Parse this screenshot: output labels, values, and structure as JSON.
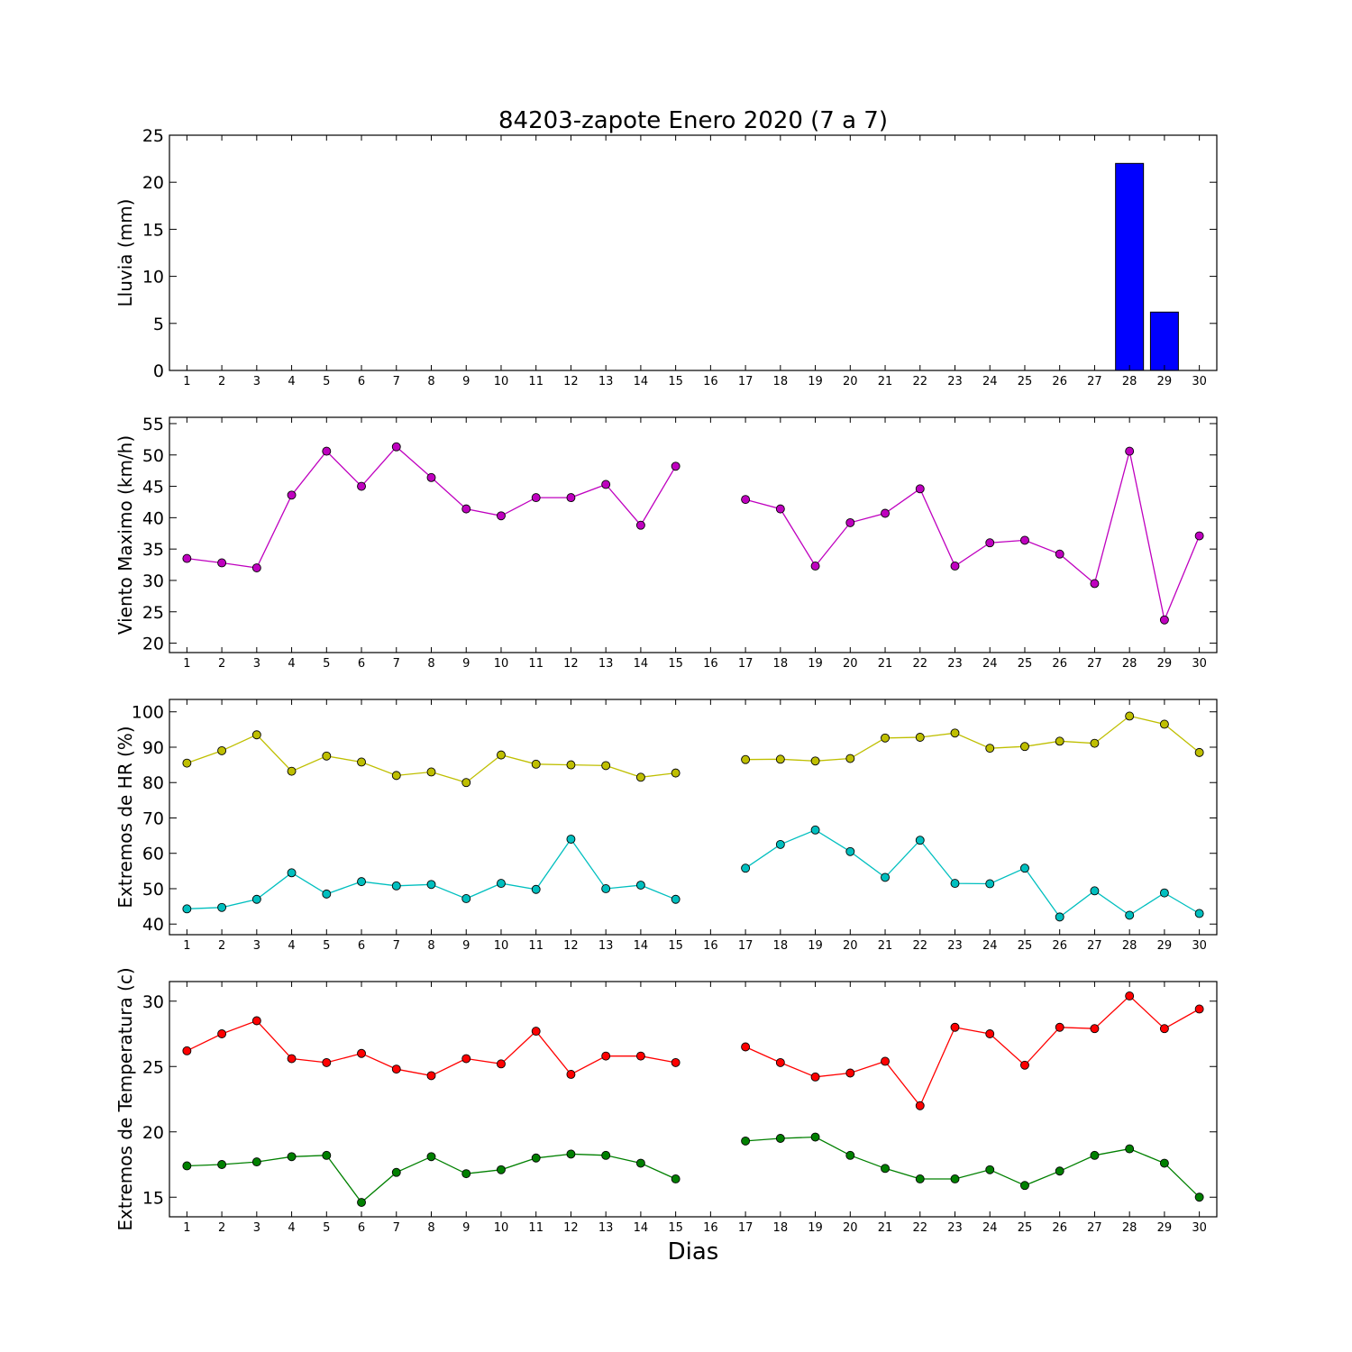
{
  "title": "84203-zapote Enero 2020  (7 a 7)",
  "xlabel": "Dias",
  "chart_data": [
    {
      "type": "bar",
      "ylabel": "Lluvia (mm)",
      "ylim": [
        0,
        25
      ],
      "yticks": [
        0,
        5,
        10,
        15,
        20,
        25
      ],
      "x": [
        1,
        2,
        3,
        4,
        5,
        6,
        7,
        8,
        9,
        10,
        11,
        12,
        13,
        14,
        15,
        16,
        17,
        18,
        19,
        20,
        21,
        22,
        23,
        24,
        25,
        26,
        27,
        28,
        29,
        30
      ],
      "xlim": [
        0.5,
        30.5
      ],
      "series": [
        {
          "color": "#0000ff",
          "values": [
            0,
            0,
            0,
            0,
            0,
            0,
            0,
            0,
            0,
            0,
            0,
            0,
            0,
            0,
            0,
            null,
            0,
            0,
            0,
            0,
            0,
            0,
            0,
            0,
            0,
            0,
            0,
            22.0,
            6.2,
            null
          ]
        }
      ]
    },
    {
      "type": "line",
      "ylabel": "Viento Maximo (km/h)",
      "ylim": [
        18.5,
        56
      ],
      "yticks": [
        20,
        25,
        30,
        35,
        40,
        45,
        50,
        55
      ],
      "x": [
        1,
        2,
        3,
        4,
        5,
        6,
        7,
        8,
        9,
        10,
        11,
        12,
        13,
        14,
        15,
        16,
        17,
        18,
        19,
        20,
        21,
        22,
        23,
        24,
        25,
        26,
        27,
        28,
        29,
        30
      ],
      "xlim": [
        0.5,
        30.5
      ],
      "series": [
        {
          "color": "#bf00bf",
          "values": [
            33.5,
            32.8,
            32.0,
            43.6,
            50.6,
            45.0,
            51.3,
            46.4,
            41.4,
            40.3,
            43.2,
            43.2,
            45.3,
            38.8,
            48.2,
            null,
            42.9,
            41.4,
            32.3,
            39.2,
            40.7,
            44.6,
            32.3,
            36.0,
            36.4,
            34.2,
            29.5,
            50.6,
            23.7,
            37.1
          ]
        }
      ]
    },
    {
      "type": "line",
      "ylabel": "Extremos de HR (%)",
      "ylim": [
        37,
        103.5
      ],
      "yticks": [
        40,
        50,
        60,
        70,
        80,
        90,
        100
      ],
      "x": [
        1,
        2,
        3,
        4,
        5,
        6,
        7,
        8,
        9,
        10,
        11,
        12,
        13,
        14,
        15,
        16,
        17,
        18,
        19,
        20,
        21,
        22,
        23,
        24,
        25,
        26,
        27,
        28,
        29,
        30
      ],
      "xlim": [
        0.5,
        30.5
      ],
      "series": [
        {
          "color": "#bfbf00",
          "values": [
            85.5,
            89.0,
            93.5,
            83.2,
            87.5,
            85.8,
            82.0,
            83.0,
            80.0,
            87.8,
            85.2,
            85.0,
            84.8,
            81.5,
            82.7,
            null,
            86.5,
            86.6,
            86.1,
            86.8,
            92.6,
            92.8,
            94.0,
            89.7,
            90.2,
            91.7,
            91.1,
            98.8,
            96.5,
            88.5
          ]
        },
        {
          "color": "#00bfbf",
          "values": [
            44.3,
            44.7,
            47.0,
            54.5,
            48.5,
            52.0,
            50.8,
            51.2,
            47.2,
            51.5,
            49.8,
            64.0,
            50.0,
            51.0,
            47.0,
            null,
            55.8,
            62.5,
            66.6,
            60.5,
            53.2,
            63.7,
            51.5,
            51.4,
            55.8,
            42.0,
            49.4,
            42.5,
            48.8,
            43.0
          ]
        }
      ]
    },
    {
      "type": "line",
      "ylabel": "Extremos de Temperatura (c)",
      "ylim": [
        13.5,
        31.5
      ],
      "yticks": [
        15,
        20,
        25,
        30
      ],
      "x": [
        1,
        2,
        3,
        4,
        5,
        6,
        7,
        8,
        9,
        10,
        11,
        12,
        13,
        14,
        15,
        16,
        17,
        18,
        19,
        20,
        21,
        22,
        23,
        24,
        25,
        26,
        27,
        28,
        29,
        30
      ],
      "xlim": [
        0.5,
        30.5
      ],
      "series": [
        {
          "color": "#ff0000",
          "values": [
            26.2,
            27.5,
            28.5,
            25.6,
            25.3,
            26.0,
            24.8,
            24.3,
            25.6,
            25.2,
            27.7,
            24.4,
            25.8,
            25.8,
            25.3,
            null,
            26.5,
            25.3,
            24.2,
            24.5,
            25.4,
            22.0,
            28.0,
            27.5,
            25.1,
            28.0,
            27.9,
            30.4,
            27.9,
            29.4
          ]
        },
        {
          "color": "#008000",
          "values": [
            17.4,
            17.5,
            17.7,
            18.1,
            18.2,
            14.6,
            16.9,
            18.1,
            16.8,
            17.1,
            18.0,
            18.3,
            18.2,
            17.6,
            16.4,
            null,
            19.3,
            19.5,
            19.6,
            18.2,
            17.2,
            16.4,
            16.4,
            17.1,
            15.9,
            17.0,
            18.2,
            18.7,
            17.6,
            15.0
          ]
        }
      ]
    }
  ]
}
